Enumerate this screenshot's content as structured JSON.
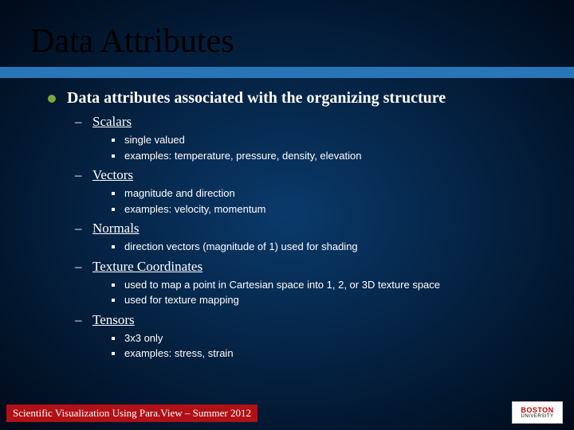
{
  "slide": {
    "title": "Data Attributes",
    "title_font_family": "Times New Roman",
    "title_fontsize": 42,
    "title_color": "#000000",
    "bar_color": "#2876b8",
    "background_gradient": [
      "#0a3a6b",
      "#041f3d",
      "#000a18"
    ],
    "main_bullet": {
      "text": "Data attributes associated with the organizing structure",
      "bullet_color": "#7fa63f",
      "fontsize": 20,
      "font_family": "Times New Roman",
      "font_weight": "bold",
      "color": "#ffffff"
    },
    "sections": [
      {
        "label": "Scalars",
        "items": [
          "single valued",
          "examples: temperature, pressure, density, elevation"
        ]
      },
      {
        "label": "Vectors",
        "items": [
          "magnitude and direction",
          "examples: velocity, momentum"
        ]
      },
      {
        "label": "Normals",
        "items": [
          "direction vectors (magnitude of 1) used for shading"
        ]
      },
      {
        "label": "Texture Coordinates",
        "items": [
          "used to map a point in Cartesian space into 1, 2, or 3D texture space",
          "used for texture mapping"
        ]
      },
      {
        "label": "Tensors",
        "items": [
          "3x3 only",
          "examples: stress, strain"
        ]
      }
    ],
    "section_style": {
      "dash_color": "#ffffff",
      "label_font_family": "Times New Roman",
      "label_fontsize": 17,
      "label_color": "#ffffff",
      "label_underline": true,
      "item_bullet_shape": "square",
      "item_bullet_size": 4,
      "item_bullet_color": "#ffffff",
      "item_font_family": "Arial",
      "item_fontsize": 13,
      "item_color": "#ffffff"
    },
    "footer": {
      "text": "Scientific Visualization Using Para.View – Summer 2012",
      "background": "#b01116",
      "color": "#ffffff",
      "fontsize": 13,
      "font_family": "Times New Roman"
    },
    "logo": {
      "line1": "BOSTON",
      "line2": "UNIVERSITY",
      "line1_color": "#cc0000",
      "line2_color": "#000000",
      "background": "#ffffff"
    }
  }
}
